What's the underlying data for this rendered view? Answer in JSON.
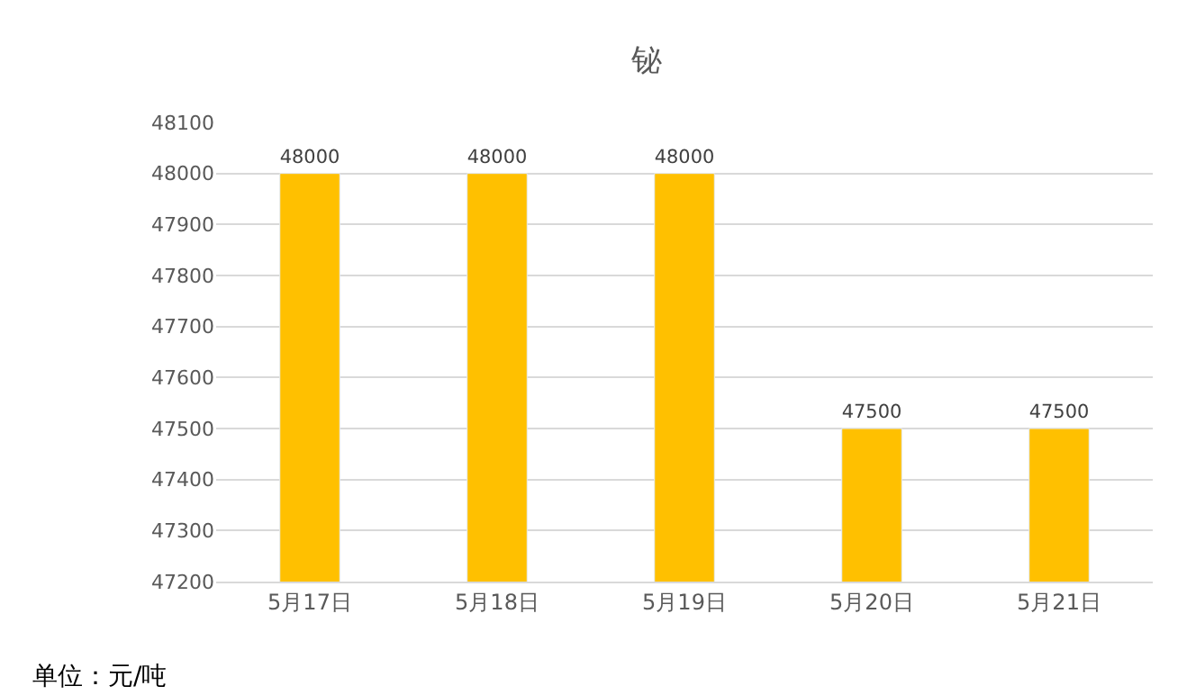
{
  "chart_data": {
    "type": "bar",
    "title": "铋",
    "categories": [
      "5月17日",
      "5月18日",
      "5月19日",
      "5月20日",
      "5月21日"
    ],
    "values": [
      48000,
      48000,
      48000,
      47500,
      47500
    ],
    "color": "#ffc000",
    "ylim": [
      47200,
      48100
    ],
    "yticks": [
      47200,
      47300,
      47400,
      47500,
      47600,
      47700,
      47800,
      47900,
      48000,
      48100
    ],
    "grid": "y",
    "legend": false,
    "data_labels": true,
    "annotations": [
      "单位：元/吨"
    ]
  }
}
